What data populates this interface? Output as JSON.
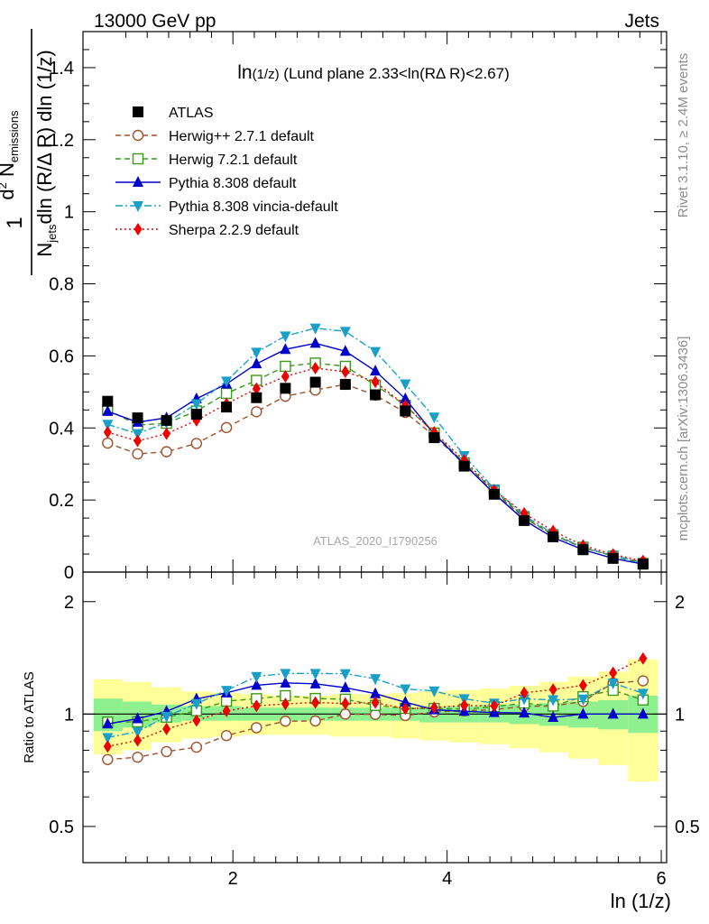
{
  "header": {
    "left": "13000 GeV pp",
    "right": "Jets"
  },
  "side_labels": {
    "rivet": "Rivet 3.1.10, ≥ 2.4M events",
    "mcplots": "mcplots.cern.ch [arXiv:1306.3436]"
  },
  "watermark": "ATLAS_2020_I1790256",
  "chart_data": {
    "type": "line",
    "title": "ln(1/z) (Lund plane 2.33<ln(RΔ R)<2.67)",
    "title_parts": {
      "main": "ln",
      "sub": "(1/z)",
      "rest": " (Lund plane 2.33<ln(RΔ R)<2.67)"
    },
    "xlabel": "ln (1/z)",
    "ylabel": "1/N_jets dN_emissions/dln(R/ΔR) dln(1/z)",
    "ylabel_parts": {
      "one": "1",
      "num_d": "d",
      "num_2": "2",
      "num_N": " N",
      "num_sub": "emissions",
      "den_N": "N",
      "den_sub": "jets",
      "den_rest": "dln (R/Δ R) dln (1/z)"
    },
    "ratio_ylabel": "Ratio to ATLAS",
    "xlim": [
      0.6,
      6.05
    ],
    "ylim": [
      0,
      1.5
    ],
    "ratio_ylim": [
      0.4,
      2.4
    ],
    "x_ticks": [
      2,
      4,
      6
    ],
    "x_tick_labels": [
      "2",
      "4",
      "6"
    ],
    "y_ticks": [
      0,
      0.2,
      0.4,
      0.6,
      0.8,
      1,
      1.2,
      1.4
    ],
    "y_tick_labels": [
      "0",
      "0.2",
      "0.4",
      "0.6",
      "0.8",
      "1",
      "1.2",
      "1.4"
    ],
    "ratio_ticks": [
      0.5,
      1,
      2
    ],
    "ratio_tick_labels": [
      "0.5",
      "1",
      "2"
    ],
    "legend_position": "top-left",
    "x": [
      0.83,
      1.11,
      1.38,
      1.66,
      1.94,
      2.22,
      2.49,
      2.77,
      3.05,
      3.33,
      3.61,
      3.88,
      4.16,
      4.44,
      4.72,
      4.99,
      5.27,
      5.55,
      5.83
    ],
    "series": [
      {
        "name": "ATLAS",
        "color": "#000000",
        "marker": "square-filled",
        "dash": "none",
        "values": [
          0.474,
          0.428,
          0.421,
          0.438,
          0.458,
          0.484,
          0.51,
          0.527,
          0.521,
          0.492,
          0.447,
          0.373,
          0.294,
          0.216,
          0.143,
          0.098,
          0.062,
          0.038,
          0.022
        ]
      },
      {
        "name": "Herwig++ 2.7.1 default",
        "color": "#a0522d",
        "marker": "circle-open",
        "dash": "6,4",
        "values": [
          0.358,
          0.328,
          0.334,
          0.357,
          0.401,
          0.445,
          0.488,
          0.505,
          0.521,
          0.491,
          0.443,
          0.378,
          0.3,
          0.222,
          0.15,
          0.103,
          0.067,
          0.046,
          0.027
        ]
      },
      {
        "name": "Herwig 7.2.1 default",
        "color": "#3a9a1a",
        "marker": "square-open",
        "dash": "6,4",
        "values": [
          0.451,
          0.408,
          0.413,
          0.447,
          0.496,
          0.532,
          0.571,
          0.58,
          0.571,
          0.519,
          0.463,
          0.386,
          0.303,
          0.226,
          0.153,
          0.103,
          0.069,
          0.044,
          0.024
        ]
      },
      {
        "name": "Pythia 8.308 default",
        "color": "#0000cc",
        "marker": "triangle-up",
        "dash": "none",
        "values": [
          0.446,
          0.416,
          0.428,
          0.481,
          0.522,
          0.578,
          0.618,
          0.635,
          0.613,
          0.558,
          0.481,
          0.383,
          0.299,
          0.218,
          0.144,
          0.096,
          0.062,
          0.038,
          0.022
        ]
      },
      {
        "name": "Pythia 8.308 vincia-default",
        "color": "#1aa0c8",
        "marker": "triangle-down",
        "dash": "8,3,2,3",
        "values": [
          0.41,
          0.384,
          0.415,
          0.467,
          0.53,
          0.61,
          0.655,
          0.677,
          0.668,
          0.612,
          0.522,
          0.43,
          0.323,
          0.231,
          0.157,
          0.107,
          0.068,
          0.046,
          0.025
        ]
      },
      {
        "name": "Sherpa 2.2.9 default",
        "color": "#ee0000",
        "marker": "diamond",
        "dash": "2,3",
        "values": [
          0.388,
          0.364,
          0.384,
          0.421,
          0.467,
          0.509,
          0.543,
          0.566,
          0.556,
          0.528,
          0.462,
          0.388,
          0.31,
          0.227,
          0.163,
          0.114,
          0.074,
          0.049,
          0.031
        ]
      }
    ],
    "ratio_band_edges": [
      0.7,
      0.97,
      1.24,
      1.52,
      1.8,
      2.08,
      2.36,
      2.63,
      2.91,
      3.19,
      3.47,
      3.74,
      4.02,
      4.3,
      4.58,
      4.86,
      5.13,
      5.41,
      5.69,
      5.97
    ],
    "ratio_band_green_low": [
      0.9,
      0.92,
      0.95,
      0.96,
      0.96,
      0.96,
      0.96,
      0.96,
      0.96,
      0.96,
      0.96,
      0.95,
      0.95,
      0.95,
      0.94,
      0.93,
      0.92,
      0.91,
      0.89
    ],
    "ratio_band_green_high": [
      1.1,
      1.08,
      1.06,
      1.05,
      1.05,
      1.04,
      1.04,
      1.04,
      1.04,
      1.04,
      1.04,
      1.05,
      1.05,
      1.06,
      1.06,
      1.07,
      1.08,
      1.09,
      1.12
    ],
    "ratio_band_yellow_low": [
      0.78,
      0.8,
      0.84,
      0.86,
      0.87,
      0.88,
      0.88,
      0.88,
      0.87,
      0.87,
      0.86,
      0.85,
      0.84,
      0.83,
      0.81,
      0.79,
      0.76,
      0.73,
      0.66
    ],
    "ratio_band_yellow_high": [
      1.24,
      1.22,
      1.18,
      1.15,
      1.14,
      1.13,
      1.12,
      1.12,
      1.13,
      1.13,
      1.14,
      1.15,
      1.16,
      1.17,
      1.19,
      1.22,
      1.26,
      1.3,
      1.4
    ]
  }
}
